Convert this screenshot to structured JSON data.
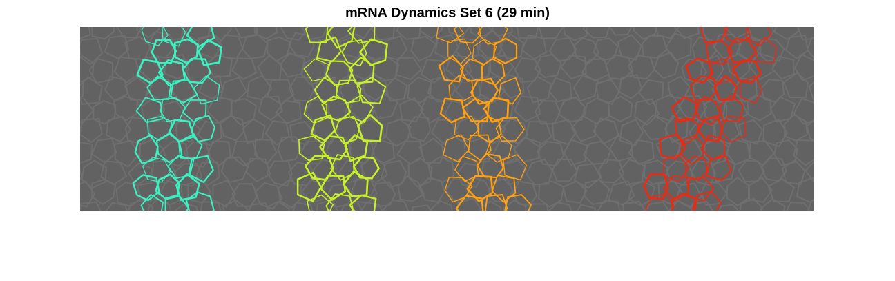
{
  "figure": {
    "title": "mRNA Dynamics Set 6 (29 min)"
  },
  "image": {
    "background_color": "#626262",
    "cell_edge_color": "#6f6f6f",
    "stripes": [
      {
        "name": "stripe-1",
        "color": "#3cf0c0"
      },
      {
        "name": "stripe-2",
        "color": "#c8f02a"
      },
      {
        "name": "stripe-3",
        "color": "#ffa010"
      },
      {
        "name": "stripe-4",
        "color": "#f02810"
      }
    ]
  }
}
